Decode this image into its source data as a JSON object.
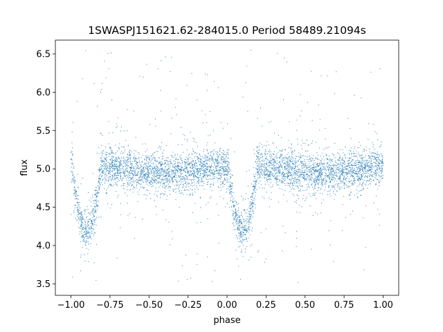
{
  "chart_data": {
    "type": "scatter",
    "title": "1SWASPJ151621.62-284015.0 Period 58489.21094s",
    "xlabel": "phase",
    "ylabel": "flux",
    "xlim": [
      -1.1,
      1.1
    ],
    "ylim": [
      3.35,
      6.68
    ],
    "x_ticks": [
      -1.0,
      -0.75,
      -0.5,
      -0.25,
      0.0,
      0.25,
      0.5,
      0.75,
      1.0
    ],
    "x_tick_labels": [
      "−1.00",
      "−0.75",
      "−0.50",
      "−0.25",
      "0.00",
      "0.25",
      "0.50",
      "0.75",
      "1.00"
    ],
    "y_ticks": [
      3.5,
      4.0,
      4.5,
      5.0,
      5.5,
      6.0,
      6.5
    ],
    "y_tick_labels": [
      "3.5",
      "4.0",
      "4.5",
      "5.0",
      "5.5",
      "6.0",
      "6.5"
    ],
    "grid": false,
    "legend": "none",
    "series": [
      {
        "color": "#1f77b4",
        "marker": "dot",
        "phase_range": [
          -1.0,
          1.0
        ],
        "baseline_flux": 5.0,
        "baseline_flux_wave_amplitude": 0.08,
        "baseline_scatter": 0.12,
        "eclipses": [
          {
            "center_phase": -0.9,
            "min_flux": 4.15,
            "half_width": 0.09
          },
          {
            "center_phase": 0.1,
            "min_flux": 4.15,
            "half_width": 0.09
          }
        ],
        "outlier_range": [
          3.5,
          6.55
        ],
        "values": [
          [
            -1.0,
            4.98
          ],
          [
            -0.95,
            4.55
          ],
          [
            -0.9,
            4.2
          ],
          [
            -0.85,
            4.5
          ],
          [
            -0.8,
            4.95
          ],
          [
            -0.75,
            5.0
          ],
          [
            -0.5,
            5.08
          ],
          [
            -0.25,
            5.05
          ],
          [
            0.0,
            4.95
          ],
          [
            0.05,
            4.5
          ],
          [
            0.1,
            4.2
          ],
          [
            0.15,
            4.5
          ],
          [
            0.2,
            4.95
          ],
          [
            0.25,
            5.0
          ],
          [
            0.5,
            5.07
          ],
          [
            0.75,
            5.08
          ],
          [
            1.0,
            4.98
          ]
        ]
      }
    ]
  }
}
